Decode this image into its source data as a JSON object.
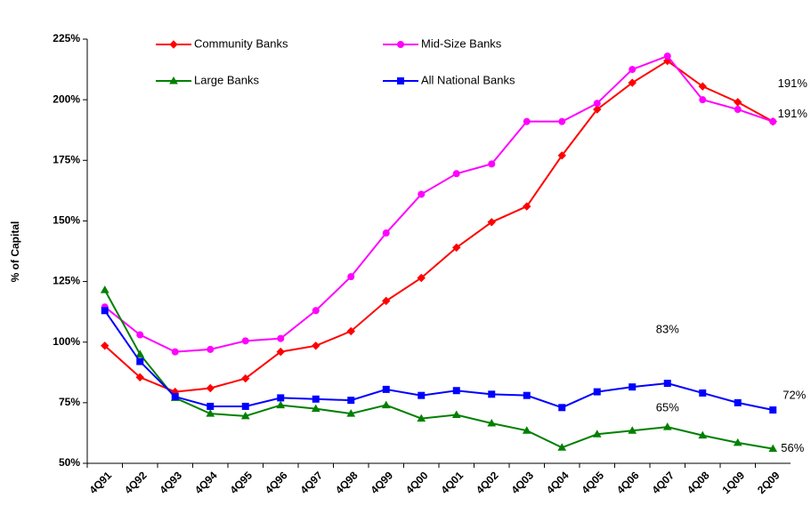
{
  "chart_data": {
    "type": "line",
    "y_label": "% of Capital",
    "categories": [
      "4Q91",
      "4Q92",
      "4Q93",
      "4Q94",
      "4Q95",
      "4Q96",
      "4Q97",
      "4Q98",
      "4Q99",
      "4Q00",
      "4Q01",
      "4Q02",
      "4Q03",
      "4Q04",
      "4Q05",
      "4Q06",
      "4Q07",
      "4Q08",
      "1Q09",
      "2Q09"
    ],
    "ylim": [
      50,
      225
    ],
    "yticks": [
      {
        "value": 50,
        "label": "50%"
      },
      {
        "value": 75,
        "label": "75%"
      },
      {
        "value": 100,
        "label": "100%"
      },
      {
        "value": 125,
        "label": "125%"
      },
      {
        "value": 150,
        "label": "150%"
      },
      {
        "value": 175,
        "label": "175%"
      },
      {
        "value": 200,
        "label": "200%"
      },
      {
        "value": 225,
        "label": "225%"
      }
    ],
    "grid": false,
    "series": [
      {
        "name": "Community Banks",
        "color": "#ff0000",
        "marker": "diamond",
        "values": [
          98.5,
          85.5,
          79.5,
          81,
          85,
          96,
          98.5,
          104.5,
          117,
          126.5,
          139,
          149.5,
          156,
          177,
          196,
          207,
          216,
          205.5,
          199,
          191
        ],
        "value_labels": [
          null,
          null,
          null,
          null,
          null,
          null,
          null,
          null,
          null,
          null,
          null,
          null,
          null,
          null,
          null,
          null,
          "216%",
          null,
          null,
          "191%"
        ]
      },
      {
        "name": "Mid-Size Banks",
        "color": "#ff00ff",
        "marker": "circle",
        "values": [
          114.5,
          103,
          96,
          97,
          100.5,
          101.5,
          113,
          127,
          145,
          161,
          169.5,
          173.5,
          191,
          191,
          198.5,
          212.5,
          218,
          200,
          196,
          191
        ],
        "value_labels": [
          null,
          null,
          null,
          null,
          null,
          null,
          null,
          null,
          null,
          null,
          null,
          null,
          null,
          null,
          null,
          null,
          "218%",
          null,
          null,
          "191%"
        ]
      },
      {
        "name": "Large Banks",
        "color": "#008000",
        "marker": "triangle",
        "values": [
          121.5,
          95,
          77,
          70.5,
          69.5,
          74,
          72.5,
          70.5,
          74,
          68.5,
          70,
          66.5,
          63.5,
          56.5,
          62,
          63.5,
          65,
          61.5,
          58.5,
          56
        ],
        "value_labels": [
          null,
          null,
          null,
          null,
          null,
          null,
          null,
          null,
          null,
          null,
          null,
          null,
          null,
          null,
          null,
          null,
          "65%",
          null,
          null,
          "56%"
        ]
      },
      {
        "name": "All National Banks",
        "color": "#0000ff",
        "marker": "square",
        "values": [
          113,
          92,
          77.5,
          73.5,
          73.5,
          77,
          76.5,
          76,
          80.5,
          78,
          80,
          78.5,
          78,
          73,
          79.5,
          81.5,
          83,
          79,
          75,
          72
        ],
        "value_labels": [
          null,
          null,
          null,
          null,
          null,
          null,
          null,
          null,
          null,
          null,
          null,
          null,
          null,
          null,
          null,
          null,
          "83%",
          null,
          null,
          "72%"
        ]
      }
    ]
  }
}
